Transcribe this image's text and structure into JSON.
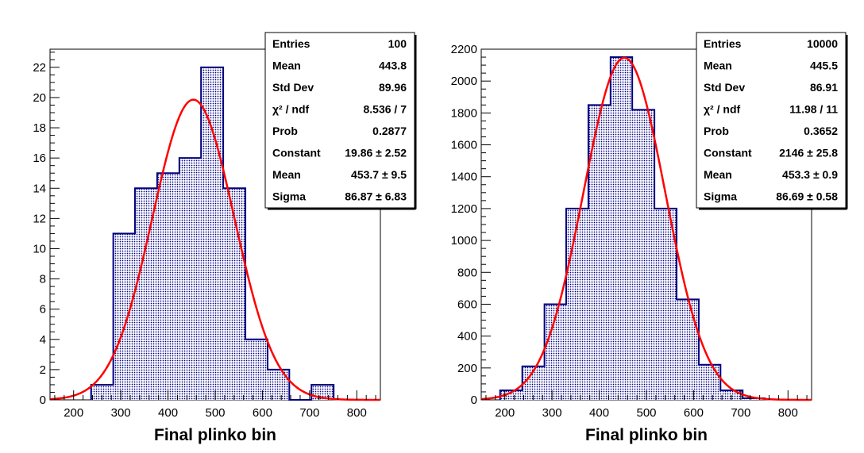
{
  "chart_data": [
    {
      "type": "bar",
      "xlabel": "Final plinko bin",
      "ylabel": "",
      "xlim": [
        150,
        850
      ],
      "ylim": [
        0,
        23.2
      ],
      "x_ticks": [
        200,
        300,
        400,
        500,
        600,
        700,
        800
      ],
      "y_ticks": [
        0,
        2,
        4,
        6,
        8,
        10,
        12,
        14,
        16,
        18,
        20,
        22
      ],
      "bin_edges": [
        237,
        284,
        330,
        377,
        424,
        470,
        517,
        564,
        611,
        657,
        704,
        751
      ],
      "values": [
        1,
        11,
        14,
        15,
        16,
        22,
        14,
        4,
        2,
        0,
        1
      ],
      "fit": {
        "function": "gaus",
        "constant": 19.86,
        "mean": 453.7,
        "sigma": 86.87
      },
      "colors": {
        "bars": "#00007f",
        "fit": "#ff0000"
      },
      "stats": {
        "rows": [
          {
            "label": "Entries",
            "value": "100"
          },
          {
            "label": "Mean",
            "value": "443.8"
          },
          {
            "label": "Std Dev",
            "value": "89.96"
          },
          {
            "label": "χ² / ndf",
            "value": "8.536 / 7"
          },
          {
            "label": "Prob",
            "value": "0.2877"
          },
          {
            "label": "Constant",
            "value": "19.86 ± 2.52"
          },
          {
            "label": "Mean",
            "value": "453.7 ± 9.5"
          },
          {
            "label": "Sigma",
            "value": "86.87 ± 6.83"
          }
        ]
      }
    },
    {
      "type": "bar",
      "xlabel": "Final plinko bin",
      "ylabel": "",
      "xlim": [
        150,
        850
      ],
      "ylim": [
        0,
        2200
      ],
      "x_ticks": [
        200,
        300,
        400,
        500,
        600,
        700,
        800
      ],
      "y_ticks": [
        0,
        200,
        400,
        600,
        800,
        1000,
        1200,
        1400,
        1600,
        1800,
        2000,
        2200
      ],
      "bin_edges": [
        190,
        237,
        284,
        330,
        377,
        424,
        470,
        517,
        564,
        611,
        657,
        704,
        751
      ],
      "values": [
        60,
        210,
        600,
        1200,
        1850,
        2150,
        1820,
        1200,
        630,
        220,
        60,
        10
      ],
      "fit": {
        "function": "gaus",
        "constant": 2146,
        "mean": 453.3,
        "sigma": 86.69
      },
      "colors": {
        "bars": "#00007f",
        "fit": "#ff0000"
      },
      "stats": {
        "rows": [
          {
            "label": "Entries",
            "value": "10000"
          },
          {
            "label": "Mean",
            "value": "445.5"
          },
          {
            "label": "Std Dev",
            "value": "86.91"
          },
          {
            "label": "χ² / ndf",
            "value": "11.98 / 11"
          },
          {
            "label": "Prob",
            "value": "0.3652"
          },
          {
            "label": "Constant",
            "value": "2146 ± 25.8"
          },
          {
            "label": "Mean",
            "value": "453.3 ± 0.9"
          },
          {
            "label": "Sigma",
            "value": "86.69 ± 0.58"
          }
        ]
      }
    }
  ]
}
